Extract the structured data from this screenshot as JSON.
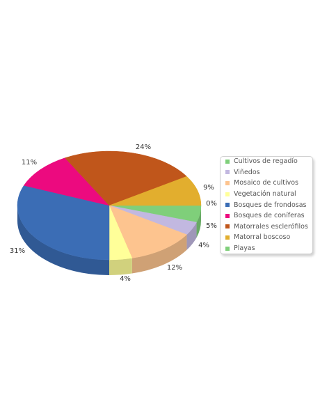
{
  "chart_data": {
    "type": "pie",
    "style": "3d-exploded-perspective",
    "legend_position": "right",
    "slices": [
      {
        "label": "Cultivos de regadío",
        "value": 5,
        "value_label": "5%",
        "color": "#7fcf7a"
      },
      {
        "label": "Viñedos",
        "value": 4,
        "value_label": "4%",
        "color": "#c2b8e0"
      },
      {
        "label": "Mosaico de cultivos",
        "value": 12,
        "value_label": "12%",
        "color": "#fdc48f"
      },
      {
        "label": "Vegetación natural",
        "value": 4,
        "value_label": "4%",
        "color": "#ffff99"
      },
      {
        "label": "Bosques de frondosas",
        "value": 31,
        "value_label": "31%",
        "color": "#3b6db5"
      },
      {
        "label": "Bosques de coníferas",
        "value": 11,
        "value_label": "11%",
        "color": "#ec0a7f"
      },
      {
        "label": "Matorrales esclerófilos",
        "value": 24,
        "value_label": "24%",
        "color": "#c0561b"
      },
      {
        "label": "Matorral boscoso",
        "value": 9,
        "value_label": "9%",
        "color": "#e2ae2e"
      },
      {
        "label": "Playas",
        "value": 0,
        "value_label": "0%",
        "color": "#7fcf7a"
      }
    ]
  }
}
